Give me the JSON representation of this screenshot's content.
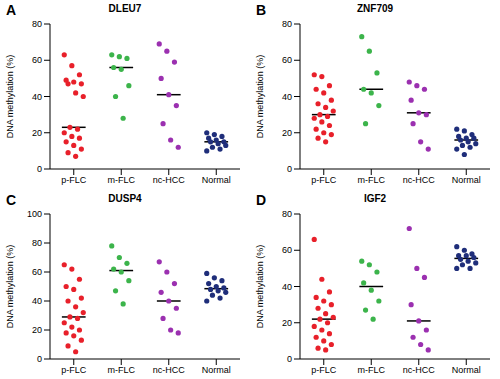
{
  "chart_data": [
    {
      "type": "scatter",
      "panel": "A",
      "title": "DLEU7",
      "ylabel": "DNA methylation (%)",
      "categories": [
        "p-FLC",
        "m-FLC",
        "nc-HCC",
        "Normal"
      ],
      "colors": [
        "#e8202a",
        "#3cb44b",
        "#9b30b0",
        "#1f2e7a"
      ],
      "values": [
        [
          63,
          57,
          52,
          49,
          48,
          47,
          47,
          42,
          40,
          23,
          22,
          20,
          18,
          17,
          15,
          13,
          11,
          9,
          7
        ],
        [
          63,
          62,
          61,
          56,
          55,
          46,
          40,
          28
        ],
        [
          69,
          65,
          59,
          50,
          41,
          35,
          25,
          16,
          12
        ],
        [
          20,
          19,
          18,
          17,
          16,
          15,
          15,
          14,
          13,
          12,
          11,
          10
        ]
      ],
      "medians": [
        23,
        56,
        41,
        15
      ],
      "ylim": [
        0,
        80
      ],
      "yticks": [
        0,
        20,
        40,
        60,
        80
      ]
    },
    {
      "type": "scatter",
      "panel": "B",
      "title": "ZNF709",
      "ylabel": "DNA methylation (%)",
      "categories": [
        "p-FLC",
        "m-FLC",
        "nc-HCC",
        "Normal"
      ],
      "colors": [
        "#e8202a",
        "#3cb44b",
        "#9b30b0",
        "#1f2e7a"
      ],
      "values": [
        [
          52,
          51,
          46,
          44,
          42,
          38,
          36,
          34,
          32,
          30,
          29,
          28,
          26,
          24,
          22,
          20,
          19,
          17,
          15
        ],
        [
          73,
          65,
          53,
          44,
          42,
          35,
          25
        ],
        [
          48,
          46,
          44,
          38,
          31,
          30,
          25,
          15,
          11
        ],
        [
          22,
          21,
          19,
          18,
          17,
          17,
          16,
          15,
          14,
          13,
          12,
          11,
          8
        ]
      ],
      "medians": [
        30,
        44,
        31,
        16
      ],
      "ylim": [
        0,
        80
      ],
      "yticks": [
        0,
        20,
        40,
        60,
        80
      ]
    },
    {
      "type": "scatter",
      "panel": "C",
      "title": "DUSP4",
      "ylabel": "DNA methylation (%)",
      "categories": [
        "p-FLC",
        "m-FLC",
        "nc-HCC",
        "Normal"
      ],
      "colors": [
        "#e8202a",
        "#3cb44b",
        "#9b30b0",
        "#1f2e7a"
      ],
      "values": [
        [
          65,
          62,
          55,
          50,
          48,
          42,
          40,
          36,
          32,
          29,
          28,
          25,
          22,
          20,
          18,
          16,
          13,
          9,
          5
        ],
        [
          78,
          70,
          66,
          62,
          60,
          54,
          47,
          38
        ],
        [
          67,
          60,
          52,
          46,
          40,
          35,
          28,
          20,
          18
        ],
        [
          59,
          56,
          54,
          52,
          50,
          49,
          48,
          47,
          46,
          44,
          42,
          40
        ]
      ],
      "medians": [
        29,
        61,
        40,
        48.5
      ],
      "ylim": [
        0,
        100
      ],
      "yticks": [
        0,
        20,
        40,
        60,
        80,
        100
      ]
    },
    {
      "type": "scatter",
      "panel": "D",
      "title": "IGF2",
      "ylabel": "DNA methylation (%)",
      "categories": [
        "p-FLC",
        "m-FLC",
        "nc-HCC",
        "Normal"
      ],
      "colors": [
        "#e8202a",
        "#3cb44b",
        "#9b30b0",
        "#1f2e7a"
      ],
      "values": [
        [
          66,
          44,
          37,
          34,
          32,
          30,
          28,
          25,
          23,
          22,
          20,
          18,
          16,
          14,
          12,
          10,
          8,
          6,
          5
        ],
        [
          54,
          52,
          48,
          42,
          38,
          32,
          27,
          22
        ],
        [
          72,
          50,
          45,
          30,
          21,
          16,
          12,
          8,
          5
        ],
        [
          62,
          60,
          58,
          57,
          57,
          56,
          55,
          54,
          53,
          52,
          50,
          50
        ]
      ],
      "medians": [
        22,
        40,
        21,
        55.5
      ],
      "ylim": [
        0,
        80
      ],
      "yticks": [
        0,
        20,
        40,
        60,
        80
      ]
    }
  ]
}
